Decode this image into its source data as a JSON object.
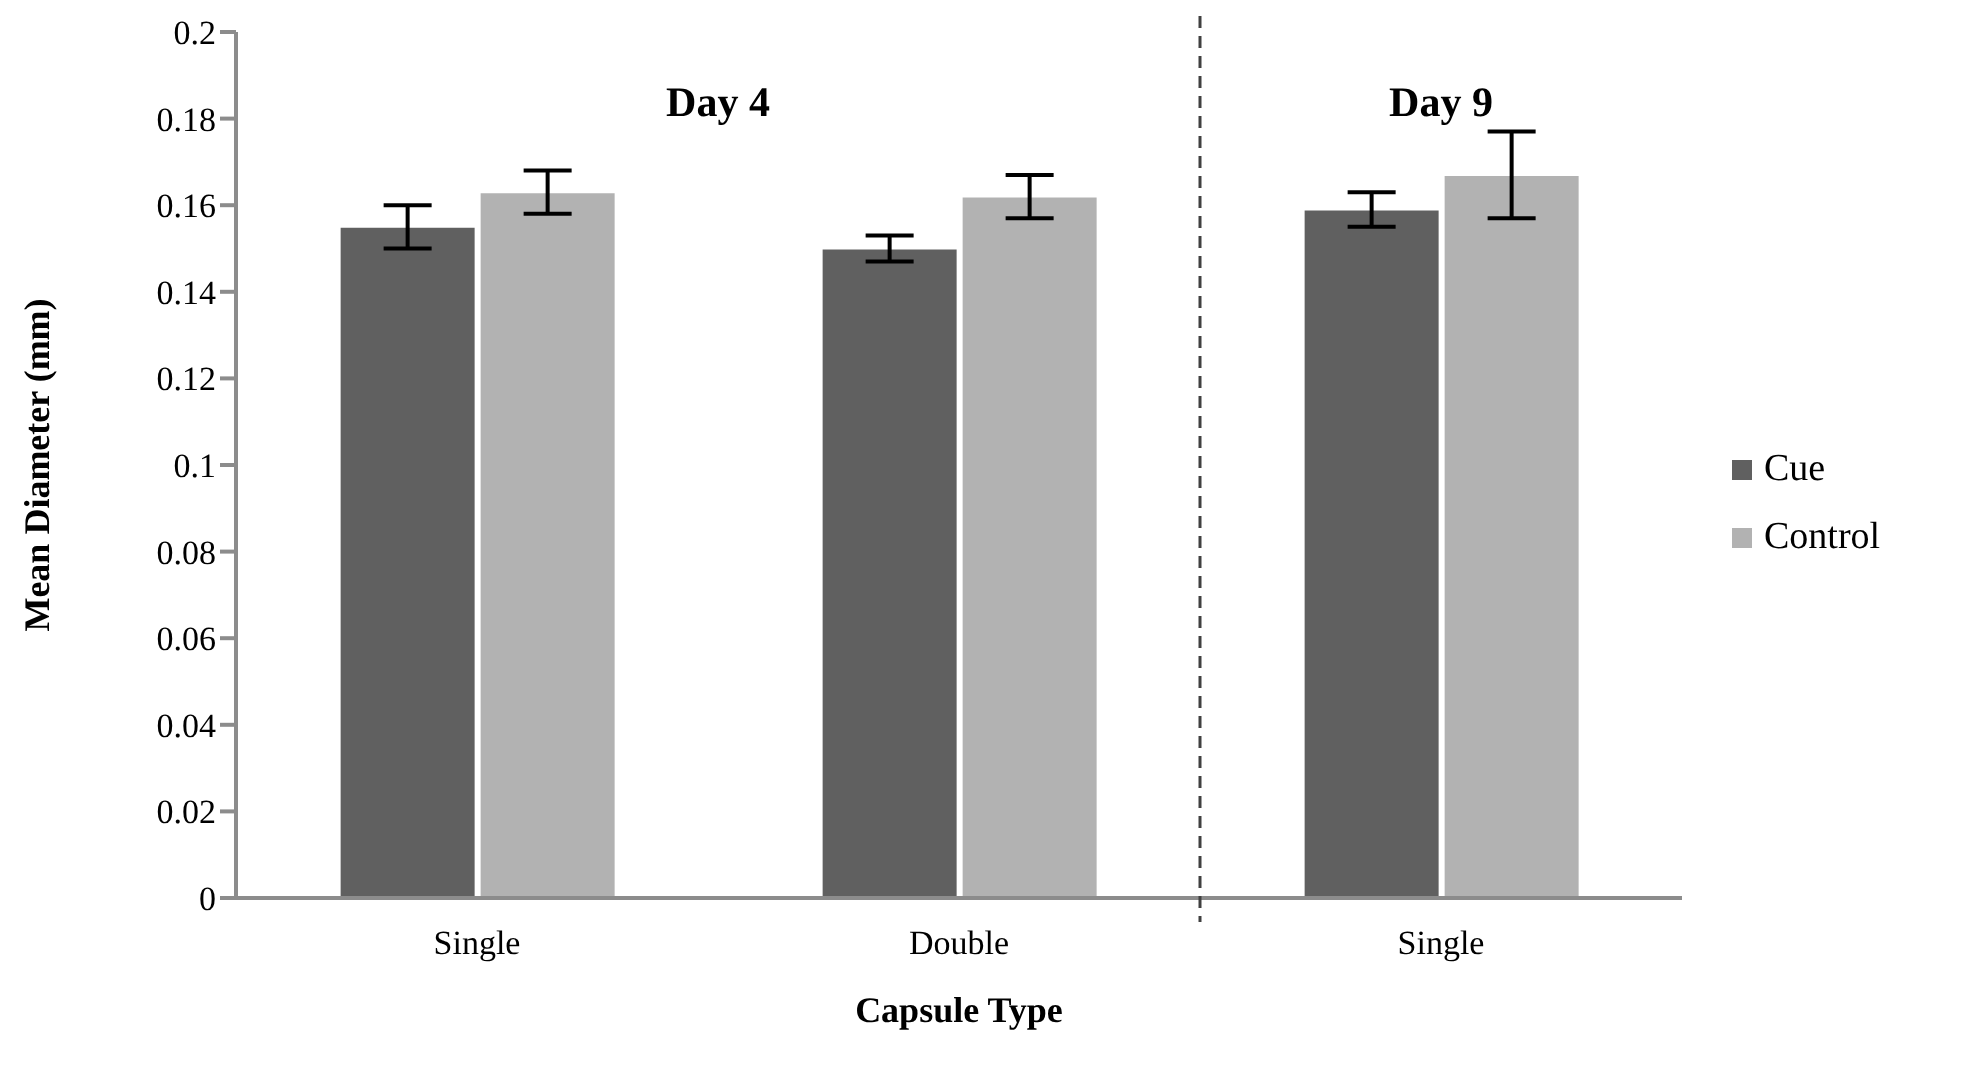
{
  "chart_data": {
    "type": "bar",
    "xlabel": "Capsule Type",
    "ylabel": "Mean Diameter (mm)",
    "categories": [
      "Single",
      "Double",
      "Single"
    ],
    "series": [
      {
        "name": "Cue",
        "color": "#606060",
        "values": [
          0.155,
          0.15,
          0.159
        ],
        "errors": [
          0.005,
          0.003,
          0.004
        ]
      },
      {
        "name": "Control",
        "color": "#b2b2b2",
        "values": [
          0.163,
          0.162,
          0.167
        ],
        "errors": [
          0.005,
          0.005,
          0.01
        ]
      }
    ],
    "ylim": [
      0,
      0.2
    ],
    "yticks": [
      0,
      0.02,
      0.04,
      0.06,
      0.08,
      0.1,
      0.12,
      0.14,
      0.16,
      0.18,
      0.2
    ],
    "annotations": [
      "Day 4",
      "Day 9"
    ],
    "legend": "right",
    "grid": false
  }
}
